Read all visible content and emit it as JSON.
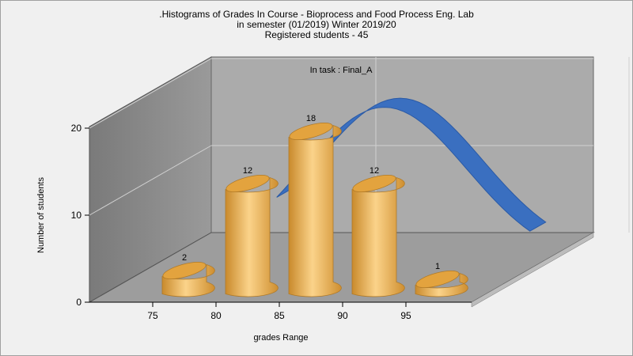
{
  "title_lines": [
    ".Histograms of Grades  In Course - Bioprocess and Food Process Eng. Lab",
    "in semester  (01/2019) Winter 2019/20",
    "Registered students - 45"
  ],
  "chart_data": {
    "type": "bar",
    "annotation": "In task : Final_A",
    "xlabel": "grades Range",
    "ylabel": "Number of students",
    "x_ticks": [
      "75",
      "80",
      "85",
      "90",
      "95"
    ],
    "y_ticks": [
      "0",
      "10",
      "20"
    ],
    "ylim": [
      0,
      20
    ],
    "grid": true,
    "categories": [
      "75-80",
      "80-85",
      "85-90",
      "90-95",
      "95-100"
    ],
    "values": [
      2,
      12,
      18,
      12,
      1
    ],
    "data_labels": [
      "2",
      "12",
      "18",
      "12",
      "1"
    ],
    "bar_color": "#e8a640",
    "curve_color": "#3a6fc0",
    "curve": {
      "type": "normal-fit",
      "mean": 88,
      "peak": 18
    }
  }
}
